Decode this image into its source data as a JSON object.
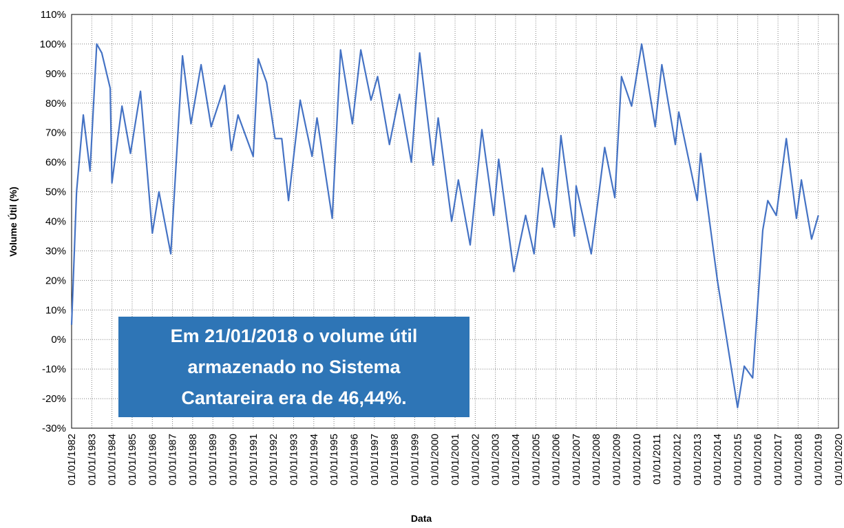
{
  "chart_data": {
    "type": "line",
    "x_label": "Data",
    "y_label": "Volume Útil (%)",
    "annotation": [
      "Em 21/01/2018 o volume útil",
      "armazenado no Sistema",
      "Cantareira era de 46,44%."
    ],
    "grid": true,
    "xlim": [
      "01/01/1982",
      "01/01/2020"
    ],
    "xticks": [
      "01/01/1982",
      "01/01/1983",
      "01/01/1984",
      "01/01/1985",
      "01/01/1986",
      "01/01/1987",
      "01/01/1988",
      "01/01/1989",
      "01/01/1990",
      "01/01/1991",
      "01/01/1992",
      "01/01/1993",
      "01/01/1994",
      "01/01/1995",
      "01/01/1996",
      "01/01/1997",
      "01/01/1998",
      "01/01/1999",
      "01/01/2000",
      "01/01/2001",
      "01/01/2002",
      "01/01/2003",
      "01/01/2004",
      "01/01/2005",
      "01/01/2006",
      "01/01/2007",
      "01/01/2008",
      "01/01/2009",
      "01/01/2010",
      "01/01/2011",
      "01/01/2012",
      "01/01/2013",
      "01/01/2014",
      "01/01/2015",
      "01/01/2016",
      "01/01/2017",
      "01/01/2018",
      "01/01/2019",
      "01/01/2020"
    ],
    "ylim": [
      -30,
      110
    ],
    "yticks": [
      {
        "value": -30,
        "label": "-30%"
      },
      {
        "value": -20,
        "label": "-20%"
      },
      {
        "value": -10,
        "label": "-10%"
      },
      {
        "value": 0,
        "label": "0%"
      },
      {
        "value": 10,
        "label": "10%"
      },
      {
        "value": 20,
        "label": "20%"
      },
      {
        "value": 30,
        "label": "30%"
      },
      {
        "value": 40,
        "label": "40%"
      },
      {
        "value": 50,
        "label": "50%"
      },
      {
        "value": 60,
        "label": "60%"
      },
      {
        "value": 70,
        "label": "70%"
      },
      {
        "value": 80,
        "label": "80%"
      },
      {
        "value": 90,
        "label": "90%"
      },
      {
        "value": 100,
        "label": "100%"
      },
      {
        "value": 110,
        "label": "110%"
      }
    ],
    "x": [
      "01/01/1982",
      "01/04/1982",
      "01/08/1982",
      "01/12/1982",
      "01/04/1983",
      "01/07/1983",
      "01/12/1983",
      "01/01/1984",
      "01/07/1984",
      "01/12/1984",
      "01/06/1985",
      "01/01/1986",
      "01/05/1986",
      "01/12/1986",
      "01/07/1987",
      "01/12/1987",
      "01/06/1988",
      "01/12/1988",
      "01/08/1989",
      "01/12/1989",
      "01/04/1990",
      "01/01/1991",
      "01/04/1991",
      "01/09/1991",
      "01/02/1992",
      "01/06/1992",
      "01/10/1992",
      "01/05/1993",
      "01/12/1993",
      "01/03/1994",
      "01/12/1994",
      "01/05/1995",
      "01/12/1995",
      "01/05/1996",
      "01/11/1996",
      "01/03/1997",
      "01/10/1997",
      "01/04/1998",
      "01/11/1998",
      "01/04/1999",
      "01/12/1999",
      "01/03/2000",
      "01/11/2000",
      "01/03/2001",
      "01/10/2001",
      "01/05/2002",
      "01/12/2002",
      "01/03/2003",
      "01/12/2003",
      "01/07/2004",
      "01/12/2004",
      "01/05/2005",
      "01/12/2005",
      "01/04/2006",
      "01/12/2006",
      "01/01/2007",
      "01/10/2007",
      "01/06/2008",
      "01/12/2008",
      "01/04/2009",
      "01/10/2009",
      "01/04/2010",
      "01/12/2010",
      "01/04/2011",
      "01/12/2011",
      "01/02/2012",
      "01/01/2013",
      "01/03/2013",
      "01/01/2014",
      "01/01/2015",
      "01/05/2015",
      "01/10/2015",
      "01/04/2016",
      "01/07/2016",
      "01/12/2016",
      "01/06/2017",
      "01/12/2017",
      "01/03/2018",
      "01/09/2018",
      "01/01/2019"
    ],
    "series": [
      {
        "name": "Volume Útil",
        "color": "#4472c4",
        "values": [
          5,
          50,
          76,
          57,
          100,
          97,
          85,
          53,
          79,
          63,
          84,
          36,
          50,
          29,
          96,
          73,
          93,
          72,
          86,
          64,
          76,
          62,
          95,
          87,
          68,
          68,
          47,
          81,
          62,
          75,
          41,
          98,
          73,
          98,
          81,
          89,
          66,
          83,
          60,
          97,
          59,
          75,
          40,
          54,
          32,
          71,
          42,
          61,
          23,
          42,
          29,
          58,
          38,
          69,
          35,
          52,
          29,
          65,
          48,
          89,
          79,
          100,
          72,
          93,
          66,
          77,
          47,
          63,
          20,
          -23,
          -9,
          -13,
          37,
          47,
          42,
          68,
          41,
          54,
          34,
          42
        ]
      }
    ]
  }
}
